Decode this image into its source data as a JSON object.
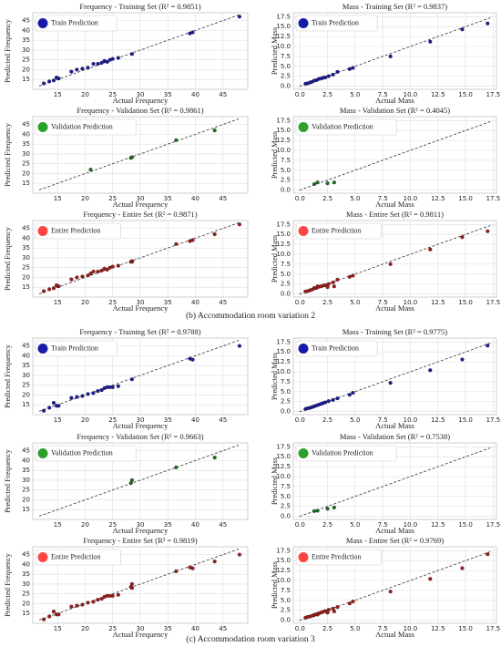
{
  "chart_data": [
    {
      "type": "scatter",
      "title": "Frequency - Training Set (R² = 0.9851)",
      "x_label": "Actual Frequency",
      "y_label": "Predicted Frequency",
      "legend": "Train Prediction",
      "color": "#1c1c9c",
      "legend_color": "#1a1aa8",
      "grid": true,
      "x": [
        12.5,
        13.5,
        14.3,
        14.8,
        15.2,
        17.5,
        18.5,
        19.5,
        20.5,
        21.5,
        22.3,
        23,
        23.5,
        24,
        24.5,
        25,
        26,
        28.5,
        39,
        39.5,
        48
      ],
      "y": [
        13,
        14,
        14.5,
        16,
        15.5,
        19,
        20,
        20.5,
        21,
        23,
        23,
        23.5,
        24.5,
        24,
        25,
        25.5,
        26,
        28,
        38.5,
        39,
        47
      ],
      "xlim": [
        10.5,
        49.5
      ],
      "ylim": [
        10,
        49
      ],
      "xticks": [
        15,
        20,
        25,
        30,
        35,
        40,
        45
      ],
      "yticks": [
        15,
        20,
        25,
        30,
        35,
        40,
        45
      ]
    },
    {
      "type": "scatter",
      "title": "Mass - Training Set (R² = 0.9837)",
      "x_label": "Actual Mass",
      "y_label": "Predicted Mass",
      "legend": "Train Prediction",
      "color": "#1c1c9c",
      "legend_color": "#1a1aa8",
      "grid": true,
      "x": [
        0.5,
        0.7,
        0.9,
        1.1,
        1.3,
        1.5,
        1.7,
        1.9,
        2.1,
        2.3,
        2.6,
        3.0,
        3.4,
        4.5,
        4.8,
        8.2,
        11.8,
        14.7,
        17
      ],
      "y": [
        0.6,
        0.7,
        0.9,
        1.1,
        1.4,
        1.5,
        1.8,
        1.9,
        2.1,
        2.2,
        2.5,
        2.9,
        3.6,
        4.3,
        4.6,
        7.5,
        11.2,
        14.3,
        15.8
      ],
      "xlim": [
        -0.6,
        17.8
      ],
      "ylim": [
        -0.8,
        18.5
      ],
      "xticks": [
        {
          "value": 0,
          "label": "0.0"
        },
        {
          "value": 2.5,
          "label": "2.5"
        },
        {
          "value": 5,
          "label": "5.0"
        },
        {
          "value": 7.5,
          "label": "7.5"
        },
        {
          "value": 10,
          "label": "10.0"
        },
        {
          "value": 12.5,
          "label": "12.5"
        },
        {
          "value": 15,
          "label": "15.0"
        },
        {
          "value": 17.5,
          "label": "17.5"
        }
      ],
      "yticks": [
        {
          "value": 0,
          "label": "0.0"
        },
        {
          "value": 2.5,
          "label": "2.5"
        },
        {
          "value": 5,
          "label": "5.0"
        },
        {
          "value": 7.5,
          "label": "7.5"
        },
        {
          "value": 10,
          "label": "10.0"
        },
        {
          "value": 12.5,
          "label": "12.5"
        },
        {
          "value": 15,
          "label": "15.0"
        },
        {
          "value": 17.5,
          "label": "17.5"
        }
      ]
    },
    {
      "type": "scatter",
      "title": "Frequency - Validation Set (R² = 0.9861)",
      "x_label": "Actual Frequency",
      "y_label": "Predicted Frequency",
      "legend": "Validation Prediction",
      "color": "#1f6f1f",
      "legend_color": "#2ca02c",
      "grid": true,
      "x": [
        21,
        28.3,
        28.5,
        36.5,
        43.5
      ],
      "y": [
        22,
        28,
        28.3,
        37,
        42
      ],
      "xlim": [
        10.5,
        49.5
      ],
      "ylim": [
        10,
        49
      ],
      "xticks": [
        15,
        20,
        25,
        30,
        35,
        40,
        45
      ],
      "yticks": [
        15,
        20,
        25,
        30,
        35,
        40,
        45
      ]
    },
    {
      "type": "scatter",
      "title": "Mass - Validation Set (R² = 0.4045)",
      "x_label": "Actual Mass",
      "y_label": "Predicted Mass",
      "legend": "Validation Prediction",
      "color": "#1f6f1f",
      "legend_color": "#2ca02c",
      "grid": true,
      "x": [
        1.3,
        1.6,
        2.5,
        3.1
      ],
      "y": [
        1.5,
        1.9,
        1.7,
        1.9
      ],
      "xlim": [
        -0.6,
        17.8
      ],
      "ylim": [
        -0.8,
        18.5
      ],
      "xticks": [
        {
          "value": 0,
          "label": "0.0"
        },
        {
          "value": 2.5,
          "label": "2.5"
        },
        {
          "value": 5,
          "label": "5.0"
        },
        {
          "value": 7.5,
          "label": "7.5"
        },
        {
          "value": 10,
          "label": "10.0"
        },
        {
          "value": 12.5,
          "label": "12.5"
        },
        {
          "value": 15,
          "label": "15.0"
        },
        {
          "value": 17.5,
          "label": "17.5"
        }
      ],
      "yticks": [
        {
          "value": 0,
          "label": "0.0"
        },
        {
          "value": 2.5,
          "label": "2.5"
        },
        {
          "value": 5,
          "label": "5.0"
        },
        {
          "value": 7.5,
          "label": "7.5"
        },
        {
          "value": 10,
          "label": "10.0"
        },
        {
          "value": 12.5,
          "label": "12.5"
        },
        {
          "value": 15,
          "label": "15.0"
        },
        {
          "value": 17.5,
          "label": "17.5"
        }
      ]
    },
    {
      "type": "scatter",
      "title": "Frequency - Entire Set (R² = 0.9871)",
      "x_label": "Actual Frequency",
      "y_label": "Predicted Frequency",
      "legend": "Entire Prediction",
      "color": "#a01c1c",
      "legend_color": "#ff4444",
      "grid": true,
      "x": [
        12.5,
        13.5,
        14.3,
        14.8,
        15.2,
        17.5,
        18.5,
        19.5,
        20.5,
        21,
        21.5,
        22.3,
        23,
        23.5,
        24,
        24.5,
        25,
        26,
        28.3,
        28.5,
        28.5,
        36.5,
        39,
        39.5,
        43.5,
        48
      ],
      "y": [
        13,
        14,
        14.5,
        16,
        15.5,
        19,
        20,
        20.5,
        21,
        22,
        23,
        23,
        23.5,
        24.5,
        24,
        25,
        25.5,
        26,
        28,
        28,
        28.3,
        37,
        38.5,
        39,
        42,
        47
      ],
      "xlim": [
        10.5,
        49.5
      ],
      "ylim": [
        10,
        49
      ],
      "xticks": [
        15,
        20,
        25,
        30,
        35,
        40,
        45
      ],
      "yticks": [
        15,
        20,
        25,
        30,
        35,
        40,
        45
      ]
    },
    {
      "type": "scatter",
      "title": "Mass - Entire Set (R² = 0.9811)",
      "x_label": "Actual Mass",
      "y_label": "Predicted Mass",
      "legend": "Entire Prediction",
      "color": "#a01c1c",
      "legend_color": "#ff4444",
      "grid": true,
      "x": [
        0.5,
        0.7,
        0.9,
        1.1,
        1.3,
        1.3,
        1.5,
        1.6,
        1.7,
        1.9,
        2.1,
        2.3,
        2.5,
        2.6,
        3.0,
        3.1,
        3.4,
        4.5,
        4.8,
        8.2,
        11.8,
        14.7,
        17
      ],
      "y": [
        0.6,
        0.7,
        0.9,
        1.1,
        1.4,
        1.5,
        1.5,
        1.9,
        1.8,
        1.9,
        2.1,
        2.2,
        1.7,
        2.5,
        2.9,
        1.9,
        3.6,
        4.3,
        4.6,
        7.5,
        11.2,
        14.3,
        15.8
      ],
      "xlim": [
        -0.6,
        17.8
      ],
      "ylim": [
        -0.8,
        18.5
      ],
      "xticks": [
        {
          "value": 0,
          "label": "0.0"
        },
        {
          "value": 2.5,
          "label": "2.5"
        },
        {
          "value": 5,
          "label": "5.0"
        },
        {
          "value": 7.5,
          "label": "7.5"
        },
        {
          "value": 10,
          "label": "10.0"
        },
        {
          "value": 12.5,
          "label": "12.5"
        },
        {
          "value": 15,
          "label": "15.0"
        },
        {
          "value": 17.5,
          "label": "17.5"
        }
      ],
      "yticks": [
        {
          "value": 0,
          "label": "0.0"
        },
        {
          "value": 2.5,
          "label": "2.5"
        },
        {
          "value": 5,
          "label": "5.0"
        },
        {
          "value": 7.5,
          "label": "7.5"
        },
        {
          "value": 10,
          "label": "10.0"
        },
        {
          "value": 12.5,
          "label": "12.5"
        },
        {
          "value": 15,
          "label": "15.0"
        },
        {
          "value": 17.5,
          "label": "17.5"
        }
      ]
    },
    {
      "type": "scatter",
      "title": "Frequency - Training Set (R² = 0.9788)",
      "x_label": "Actual Frequency",
      "y_label": "Predicted Frequency",
      "legend": "Train Prediction",
      "color": "#1c1c9c",
      "legend_color": "#1a1aa8",
      "grid": true,
      "x": [
        12.5,
        13.5,
        14.3,
        14.8,
        15.2,
        17.5,
        18.5,
        19.5,
        20.5,
        21.5,
        22.3,
        23,
        23.5,
        24,
        24.5,
        25,
        26,
        28.5,
        39,
        39.5,
        48
      ],
      "y": [
        12,
        13.5,
        16,
        14.5,
        14.5,
        18.5,
        19,
        19.5,
        20.5,
        21,
        22,
        22.5,
        23.5,
        24,
        24,
        24,
        24.5,
        28,
        38.5,
        38,
        45
      ],
      "xlim": [
        10.5,
        49.5
      ],
      "ylim": [
        10,
        49
      ],
      "xticks": [
        15,
        20,
        25,
        30,
        35,
        40,
        45
      ],
      "yticks": [
        15,
        20,
        25,
        30,
        35,
        40,
        45
      ]
    },
    {
      "type": "scatter",
      "title": "Mass - Training Set (R² = 0.9775)",
      "x_label": "Actual Mass",
      "y_label": "Predicted Mass",
      "legend": "Train Prediction",
      "color": "#1c1c9c",
      "legend_color": "#1a1aa8",
      "grid": true,
      "x": [
        0.5,
        0.7,
        0.9,
        1.1,
        1.3,
        1.5,
        1.7,
        1.9,
        2.1,
        2.3,
        2.6,
        3.0,
        3.4,
        4.5,
        4.8,
        8.2,
        11.8,
        14.7,
        17
      ],
      "y": [
        0.6,
        0.8,
        0.9,
        1.1,
        1.3,
        1.5,
        1.7,
        1.9,
        2.1,
        2.3,
        2.6,
        2.9,
        3.3,
        4.2,
        4.7,
        7.2,
        10.4,
        13.1,
        16.6
      ],
      "xlim": [
        -0.6,
        17.8
      ],
      "ylim": [
        -0.8,
        18.5
      ],
      "xticks": [
        {
          "value": 0,
          "label": "0.0"
        },
        {
          "value": 2.5,
          "label": "2.5"
        },
        {
          "value": 5,
          "label": "5.0"
        },
        {
          "value": 7.5,
          "label": "7.5"
        },
        {
          "value": 10,
          "label": "10.0"
        },
        {
          "value": 12.5,
          "label": "12.5"
        },
        {
          "value": 15,
          "label": "15.0"
        },
        {
          "value": 17.5,
          "label": "17.5"
        }
      ],
      "yticks": [
        {
          "value": 0,
          "label": "0.0"
        },
        {
          "value": 2.5,
          "label": "2.5"
        },
        {
          "value": 5,
          "label": "5.0"
        },
        {
          "value": 7.5,
          "label": "7.5"
        },
        {
          "value": 10,
          "label": "10.0"
        },
        {
          "value": 12.5,
          "label": "12.5"
        },
        {
          "value": 15,
          "label": "15.0"
        },
        {
          "value": 17.5,
          "label": "17.5"
        }
      ]
    },
    {
      "type": "scatter",
      "title": "Frequency - Validation Set (R² = 0.9663)",
      "x_label": "Actual Frequency",
      "y_label": "Predicted Frequency",
      "legend": "Validation Prediction",
      "color": "#1f6f1f",
      "legend_color": "#2ca02c",
      "grid": true,
      "x": [
        28.3,
        28.5,
        36.5,
        43.5
      ],
      "y": [
        28.5,
        30,
        36.5,
        41.5
      ],
      "xlim": [
        10.5,
        49.5
      ],
      "ylim": [
        10,
        49
      ],
      "xticks": [
        15,
        20,
        25,
        30,
        35,
        40,
        45
      ],
      "yticks": [
        15,
        20,
        25,
        30,
        35,
        40,
        45
      ]
    },
    {
      "type": "scatter",
      "title": "Mass - Validation Set (R² = 0.7538)",
      "x_label": "Actual Mass",
      "y_label": "Predicted Mass",
      "legend": "Validation Prediction",
      "color": "#1f6f1f",
      "legend_color": "#2ca02c",
      "grid": true,
      "x": [
        1.3,
        1.6,
        2.5,
        3.1
      ],
      "y": [
        1.3,
        1.4,
        1.9,
        2.2
      ],
      "xlim": [
        -0.6,
        17.8
      ],
      "ylim": [
        -0.8,
        18.5
      ],
      "xticks": [
        {
          "value": 0,
          "label": "0.0"
        },
        {
          "value": 2.5,
          "label": "2.5"
        },
        {
          "value": 5,
          "label": "5.0"
        },
        {
          "value": 7.5,
          "label": "7.5"
        },
        {
          "value": 10,
          "label": "10.0"
        },
        {
          "value": 12.5,
          "label": "12.5"
        },
        {
          "value": 15,
          "label": "15.0"
        },
        {
          "value": 17.5,
          "label": "17.5"
        }
      ],
      "yticks": [
        {
          "value": 0,
          "label": "0.0"
        },
        {
          "value": 2.5,
          "label": "2.5"
        },
        {
          "value": 5,
          "label": "5.0"
        },
        {
          "value": 7.5,
          "label": "7.5"
        },
        {
          "value": 10,
          "label": "10.0"
        },
        {
          "value": 12.5,
          "label": "12.5"
        },
        {
          "value": 15,
          "label": "15.0"
        },
        {
          "value": 17.5,
          "label": "17.5"
        }
      ]
    },
    {
      "type": "scatter",
      "title": "Frequency - Entire Set (R² = 0.9819)",
      "x_label": "Actual Frequency",
      "y_label": "Predicted Frequency",
      "legend": "Entire Prediction",
      "color": "#a01c1c",
      "legend_color": "#ff4444",
      "grid": true,
      "x": [
        12.5,
        13.5,
        14.3,
        14.8,
        15.2,
        17.5,
        18.5,
        19.5,
        20.5,
        21.5,
        22.3,
        23,
        23.5,
        24,
        24.5,
        25,
        26,
        28.3,
        28.5,
        28.5,
        36.5,
        39,
        39.5,
        43.5,
        48
      ],
      "y": [
        12,
        13.5,
        16,
        14.5,
        14.5,
        18.5,
        19,
        19.5,
        20.5,
        21,
        22,
        22.5,
        23.5,
        24,
        24,
        24,
        24.5,
        28.5,
        28,
        30,
        36.5,
        38.5,
        38,
        41.5,
        45
      ],
      "xlim": [
        10.5,
        49.5
      ],
      "ylim": [
        10,
        49
      ],
      "xticks": [
        15,
        20,
        25,
        30,
        35,
        40,
        45
      ],
      "yticks": [
        15,
        20,
        25,
        30,
        35,
        40,
        45
      ]
    },
    {
      "type": "scatter",
      "title": "Mass - Entire Set (R² = 0.9769)",
      "x_label": "Actual Mass",
      "y_label": "Predicted Mass",
      "legend": "Entire Prediction",
      "color": "#a01c1c",
      "legend_color": "#ff4444",
      "grid": true,
      "x": [
        0.5,
        0.7,
        0.9,
        1.1,
        1.3,
        1.3,
        1.5,
        1.6,
        1.7,
        1.9,
        2.1,
        2.3,
        2.5,
        2.6,
        3.0,
        3.1,
        3.4,
        4.5,
        4.8,
        8.2,
        11.8,
        14.7,
        17
      ],
      "y": [
        0.6,
        0.8,
        0.9,
        1.1,
        1.3,
        1.3,
        1.5,
        1.4,
        1.7,
        1.9,
        2.1,
        2.3,
        1.9,
        2.6,
        2.9,
        2.2,
        3.3,
        4.2,
        4.7,
        7.2,
        10.4,
        13.1,
        16.6
      ],
      "xlim": [
        -0.6,
        17.8
      ],
      "ylim": [
        -0.8,
        18.5
      ],
      "xticks": [
        {
          "value": 0,
          "label": "0.0"
        },
        {
          "value": 2.5,
          "label": "2.5"
        },
        {
          "value": 5,
          "label": "5.0"
        },
        {
          "value": 7.5,
          "label": "7.5"
        },
        {
          "value": 10,
          "label": "10.0"
        },
        {
          "value": 12.5,
          "label": "12.5"
        },
        {
          "value": 15,
          "label": "15.0"
        },
        {
          "value": 17.5,
          "label": "17.5"
        }
      ],
      "yticks": [
        {
          "value": 0,
          "label": "0.0"
        },
        {
          "value": 2.5,
          "label": "2.5"
        },
        {
          "value": 5,
          "label": "5.0"
        },
        {
          "value": 7.5,
          "label": "7.5"
        },
        {
          "value": 10,
          "label": "10.0"
        },
        {
          "value": 12.5,
          "label": "12.5"
        },
        {
          "value": 15,
          "label": "15.0"
        },
        {
          "value": 17.5,
          "label": "17.5"
        }
      ]
    }
  ],
  "captions": [
    "(b) Accommodation room variation 2",
    "(c) Accommodation room variation 3"
  ]
}
